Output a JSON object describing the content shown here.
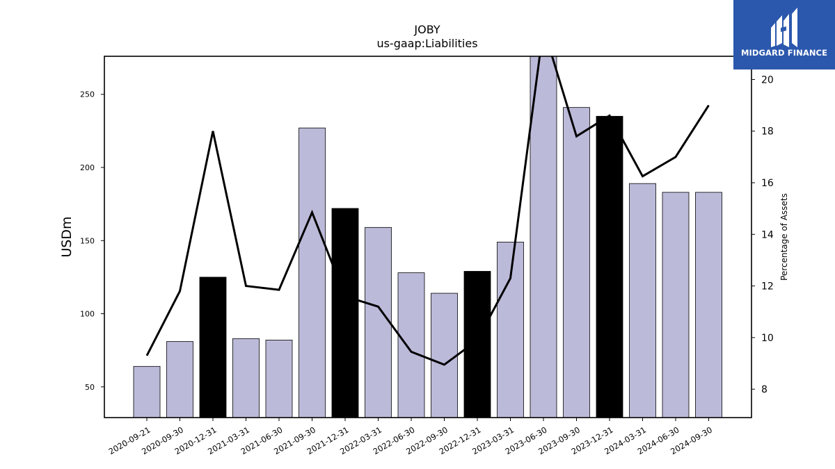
{
  "brand": {
    "name": "MIDGARD FINANCE",
    "bg_color": "#2b58ad"
  },
  "chart_data": {
    "type": "bar",
    "title": "JOBY",
    "subtitle": "us-gaap:Liabilities",
    "ylabel": "USDm",
    "y2label": "Percentage of Assets",
    "ylim": [
      29,
      276
    ],
    "y2lim": [
      6.9,
      20.9
    ],
    "yticks": [
      50,
      100,
      150,
      200,
      250
    ],
    "y2ticks": [
      8,
      10,
      12,
      14,
      16,
      18,
      20
    ],
    "categories": [
      "2020-09-21",
      "2020-09-30",
      "2020-12-31",
      "2021-03-31",
      "2021-06-30",
      "2021-09-30",
      "2021-12-31",
      "2022-03-31",
      "2022-06-30",
      "2022-09-30",
      "2022-12-31",
      "2023-03-31",
      "2023-06-30",
      "2023-09-30",
      "2023-12-31",
      "2024-03-31",
      "2024-06-30",
      "2024-09-30"
    ],
    "series": [
      {
        "kind": "bar",
        "values": [
          64,
          81,
          125,
          83,
          82,
          227,
          172,
          159,
          128,
          114,
          129,
          149,
          279,
          241,
          235,
          189,
          183,
          183
        ],
        "highlight": [
          false,
          false,
          true,
          false,
          false,
          false,
          true,
          false,
          false,
          false,
          true,
          false,
          false,
          false,
          true,
          false,
          false,
          false
        ]
      },
      {
        "kind": "line",
        "axis": "right",
        "values": [
          9.3,
          11.8,
          18.0,
          12.0,
          11.85,
          14.85,
          11.6,
          11.2,
          9.45,
          8.95,
          9.9,
          12.3,
          22.0,
          17.8,
          18.6,
          16.25,
          17.0,
          19.0
        ]
      }
    ],
    "colors": {
      "bar": "#bcbad9",
      "bar_highlight": "#000000",
      "line": "#000000"
    },
    "grid": false
  }
}
